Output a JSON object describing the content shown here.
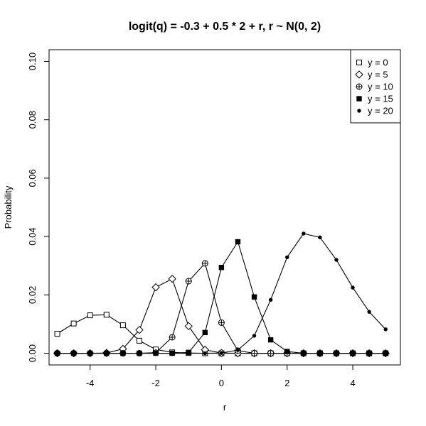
{
  "chart_data": {
    "type": "line",
    "title": "logit(q) = -0.3 + 0.5 * 2 + r, r ~ N(0, 2)",
    "xlabel": "r",
    "ylabel": "Probability",
    "xlim": [
      -5.25,
      5.45
    ],
    "ylim": [
      -0.004,
      0.104
    ],
    "xticks": [
      -4,
      -2,
      0,
      2,
      4
    ],
    "xtick_labels": [
      "-4",
      "-2",
      "0",
      "2",
      "4"
    ],
    "yticks": [
      0.0,
      0.02,
      0.04,
      0.06,
      0.08,
      0.1
    ],
    "ytick_labels": [
      "0.00",
      "0.02",
      "0.04",
      "0.06",
      "0.08",
      "0.10"
    ],
    "grid": false,
    "legend_position": "top-right",
    "x": [
      -5,
      -4.5,
      -4,
      -3.5,
      -3,
      -2.5,
      -2,
      -1.5,
      -1,
      -0.5,
      0,
      0.5,
      1,
      1.5,
      2,
      2.5,
      3,
      3.5,
      4,
      4.5,
      5
    ],
    "series": [
      {
        "name": "y = 0",
        "marker": "open-square",
        "values": [
          0.0067,
          0.0102,
          0.013,
          0.0132,
          0.0096,
          0.0043,
          0.0013,
          0.0003,
          0.0001,
          0,
          0,
          0,
          0,
          0,
          0,
          0,
          0,
          0,
          0,
          0,
          0
        ]
      },
      {
        "name": "y = 5",
        "marker": "open-diamond",
        "values": [
          0,
          0,
          0,
          0.0001,
          0.0015,
          0.008,
          0.0226,
          0.0255,
          0.0093,
          0.0012,
          0.0001,
          0,
          0,
          0,
          0,
          0,
          0,
          0,
          0,
          0,
          0
        ]
      },
      {
        "name": "y = 10",
        "marker": "circle-plus",
        "values": [
          0,
          0,
          0,
          0,
          0,
          0,
          0.0002,
          0.0055,
          0.0247,
          0.0308,
          0.0105,
          0.0009,
          0,
          0,
          0,
          0,
          0,
          0,
          0,
          0,
          0
        ]
      },
      {
        "name": "y = 15",
        "marker": "filled-square",
        "values": [
          0,
          0,
          0,
          0,
          0,
          0,
          0,
          0,
          0.0003,
          0.0071,
          0.0294,
          0.0382,
          0.0193,
          0.0046,
          0.0006,
          0,
          0,
          0,
          0,
          0,
          0
        ]
      },
      {
        "name": "y = 20",
        "marker": "filled-circle",
        "values": [
          0,
          0,
          0,
          0,
          0,
          0,
          0,
          0,
          0,
          0,
          0.0001,
          0.0011,
          0.006,
          0.0183,
          0.0329,
          0.041,
          0.0397,
          0.032,
          0.0225,
          0.0142,
          0.0082
        ]
      }
    ]
  }
}
